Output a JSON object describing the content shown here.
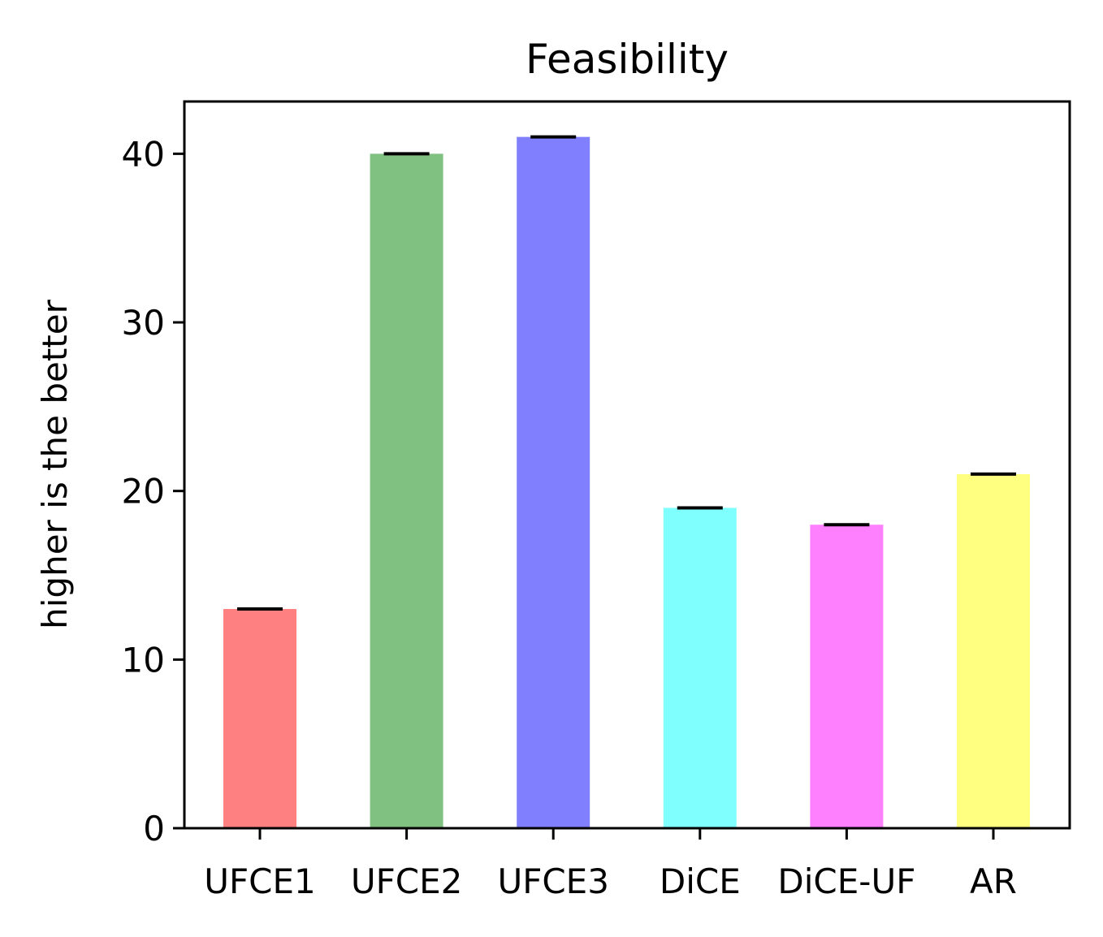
{
  "chart_data": {
    "type": "bar",
    "title": "Feasibility",
    "xlabel": "",
    "ylabel": "higher is the better",
    "categories": [
      "UFCE1",
      "UFCE2",
      "UFCE3",
      "DiCE",
      "DiCE-UF",
      "AR"
    ],
    "values": [
      13,
      40,
      41,
      19,
      18,
      21
    ],
    "error": [
      0,
      0,
      0,
      0,
      0,
      0
    ],
    "colors": [
      "#ff8080",
      "#80c080",
      "#8080ff",
      "#80ffff",
      "#ff80ff",
      "#ffff80"
    ],
    "error_color": "#000000",
    "ylim": [
      0,
      43.1
    ],
    "yticks": [
      0,
      10,
      20,
      30,
      40
    ],
    "grid": false,
    "legend": "none"
  }
}
